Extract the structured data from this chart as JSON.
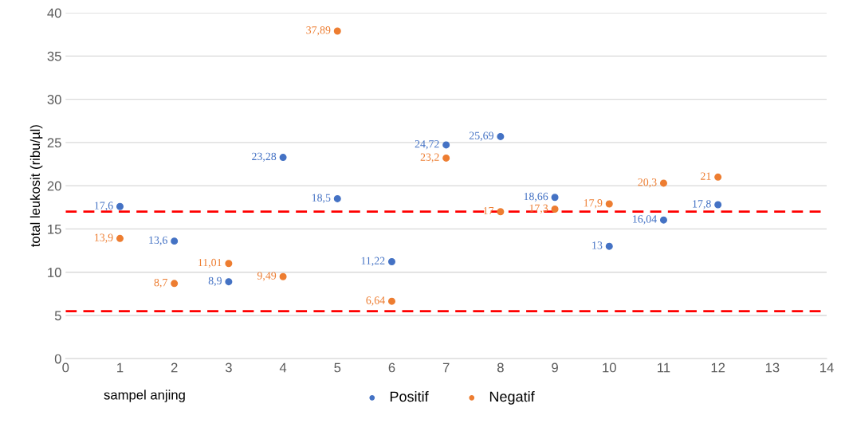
{
  "chart_data": {
    "type": "scatter",
    "xlabel": "sampel anjing",
    "ylabel": "total leukosit (ribu/µl)",
    "xlim": [
      0,
      14
    ],
    "xticks": [
      0,
      1,
      2,
      3,
      4,
      5,
      6,
      7,
      8,
      9,
      10,
      11,
      12,
      13,
      14
    ],
    "ylim": [
      0,
      40
    ],
    "yticks": [
      0,
      5,
      10,
      15,
      20,
      25,
      30,
      35,
      40
    ],
    "grid": "y",
    "legend": "bottom",
    "marker": "circle",
    "series": [
      {
        "name": "Positif",
        "color": "#4472c4",
        "x": [
          1,
          2,
          3,
          4,
          5,
          6,
          7,
          8,
          9,
          10,
          11,
          12
        ],
        "values": [
          17.6,
          13.6,
          8.9,
          23.28,
          18.5,
          11.22,
          24.72,
          25.69,
          18.66,
          13,
          16.04,
          17.8
        ],
        "value_labels": [
          "17,6",
          "13,6",
          "8,9",
          "23,28",
          "18,5",
          "11,22",
          "24,72",
          "25,69",
          "18,66",
          "13",
          "16,04",
          "17,8"
        ]
      },
      {
        "name": "Negatif",
        "color": "#ed7d31",
        "x": [
          1,
          2,
          3,
          4,
          5,
          6,
          7,
          8,
          9,
          10,
          11,
          12
        ],
        "values": [
          13.9,
          8.7,
          11.01,
          9.49,
          37.89,
          6.64,
          23.2,
          17,
          17.3,
          17.9,
          20.3,
          21
        ],
        "value_labels": [
          "13,9",
          "8,7",
          "11,01",
          "9,49",
          "37,89",
          "6,64",
          "23,2",
          "17",
          "17,3",
          "17,9",
          "20,3",
          "21"
        ]
      }
    ],
    "ref_lines": [
      {
        "axis": "y",
        "value": 17,
        "color": "#ff0000",
        "line_style": "dashed"
      },
      {
        "axis": "y",
        "value": 5.5,
        "color": "#ff0000",
        "line_style": "dashed"
      }
    ]
  }
}
